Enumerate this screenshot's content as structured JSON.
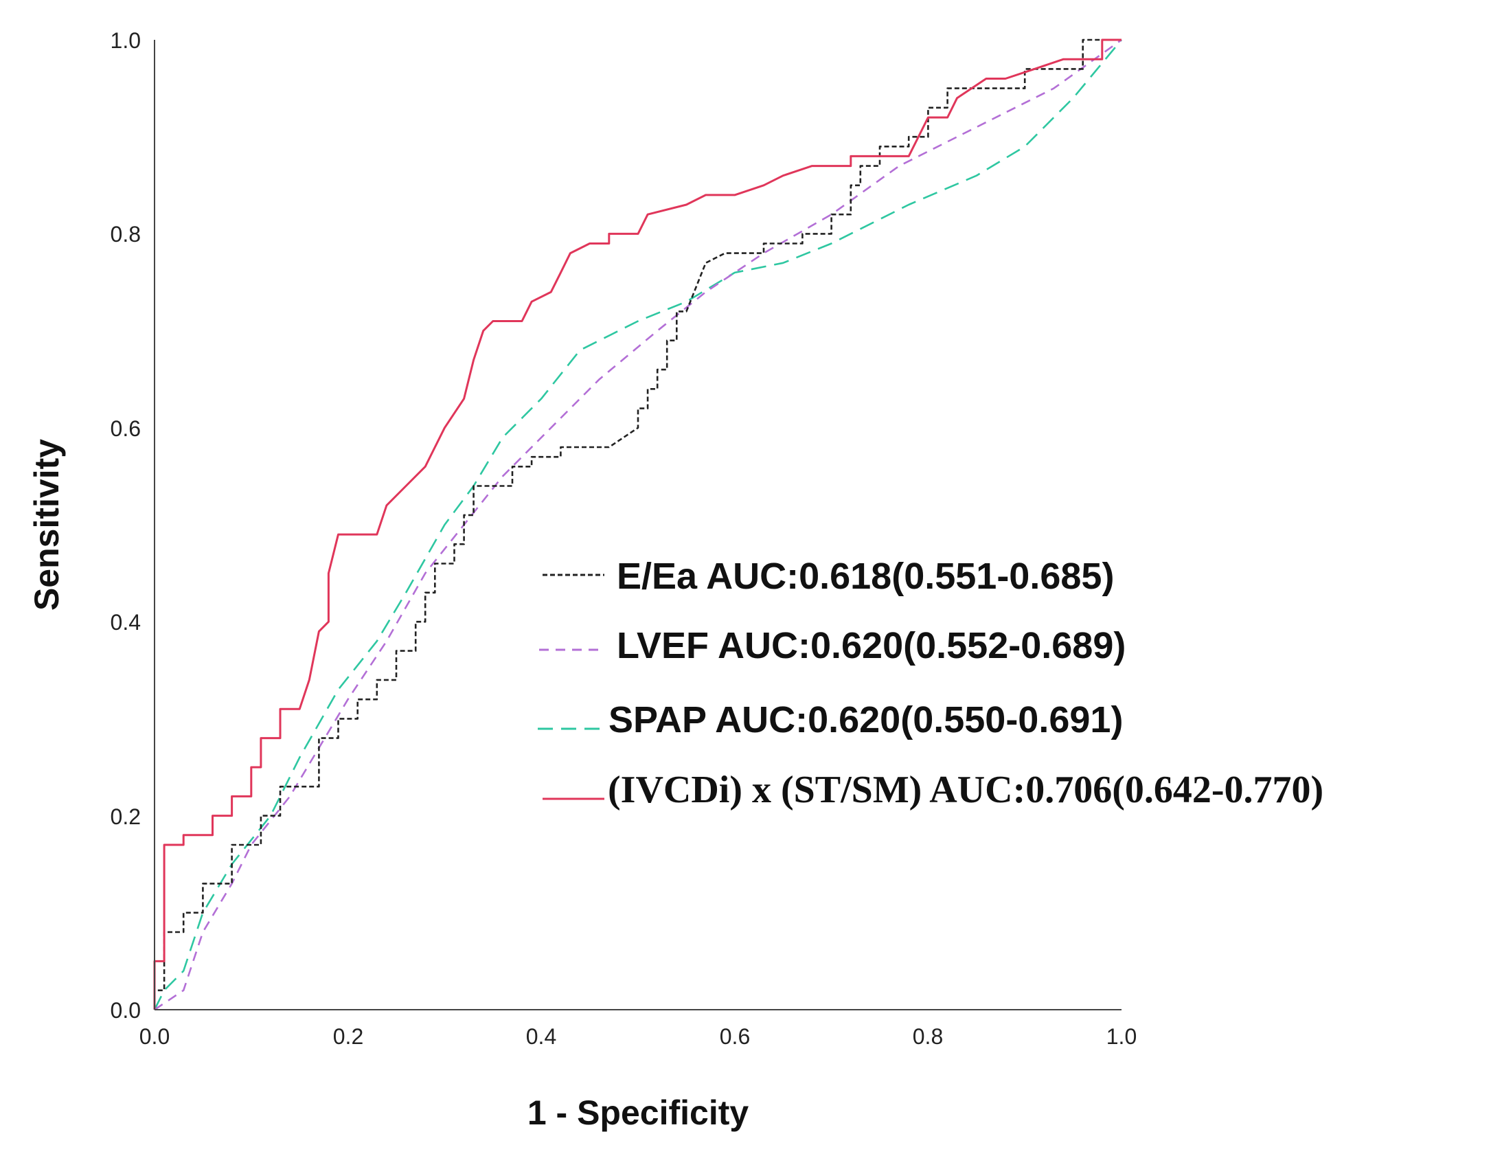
{
  "chart_data": {
    "type": "line",
    "title": "",
    "xlabel": "1 - Specificity",
    "ylabel": "Sensitivity",
    "xlim": [
      0,
      1
    ],
    "ylim": [
      0,
      1
    ],
    "xticks": [
      "0.0",
      "0.2",
      "0.4",
      "0.6",
      "0.8",
      "1.0"
    ],
    "yticks": [
      "0.0",
      "0.2",
      "0.4",
      "0.6",
      "0.8",
      "1.0"
    ],
    "legend_position": "center-right",
    "series": [
      {
        "name": "E/Ea",
        "legend_label": "E/Ea AUC:0.618(0.551-0.685)",
        "auc": "0.618",
        "ci": "0.551-0.685",
        "color": "#222222",
        "dash": "short",
        "points": [
          [
            0,
            0
          ],
          [
            0,
            0.02
          ],
          [
            0.01,
            0.02
          ],
          [
            0.01,
            0.08
          ],
          [
            0.03,
            0.08
          ],
          [
            0.03,
            0.1
          ],
          [
            0.05,
            0.1
          ],
          [
            0.05,
            0.13
          ],
          [
            0.08,
            0.13
          ],
          [
            0.08,
            0.17
          ],
          [
            0.11,
            0.17
          ],
          [
            0.11,
            0.2
          ],
          [
            0.13,
            0.2
          ],
          [
            0.13,
            0.23
          ],
          [
            0.17,
            0.23
          ],
          [
            0.17,
            0.28
          ],
          [
            0.19,
            0.28
          ],
          [
            0.19,
            0.3
          ],
          [
            0.21,
            0.3
          ],
          [
            0.21,
            0.32
          ],
          [
            0.23,
            0.32
          ],
          [
            0.23,
            0.34
          ],
          [
            0.25,
            0.34
          ],
          [
            0.25,
            0.37
          ],
          [
            0.27,
            0.37
          ],
          [
            0.27,
            0.4
          ],
          [
            0.28,
            0.4
          ],
          [
            0.28,
            0.43
          ],
          [
            0.29,
            0.43
          ],
          [
            0.29,
            0.46
          ],
          [
            0.31,
            0.46
          ],
          [
            0.31,
            0.48
          ],
          [
            0.32,
            0.48
          ],
          [
            0.32,
            0.51
          ],
          [
            0.33,
            0.51
          ],
          [
            0.33,
            0.54
          ],
          [
            0.37,
            0.54
          ],
          [
            0.37,
            0.56
          ],
          [
            0.39,
            0.56
          ],
          [
            0.39,
            0.57
          ],
          [
            0.42,
            0.57
          ],
          [
            0.42,
            0.58
          ],
          [
            0.47,
            0.58
          ],
          [
            0.5,
            0.6
          ],
          [
            0.5,
            0.62
          ],
          [
            0.51,
            0.62
          ],
          [
            0.51,
            0.64
          ],
          [
            0.52,
            0.64
          ],
          [
            0.52,
            0.66
          ],
          [
            0.53,
            0.66
          ],
          [
            0.53,
            0.69
          ],
          [
            0.54,
            0.69
          ],
          [
            0.54,
            0.72
          ],
          [
            0.55,
            0.72
          ],
          [
            0.57,
            0.77
          ],
          [
            0.59,
            0.78
          ],
          [
            0.63,
            0.78
          ],
          [
            0.63,
            0.79
          ],
          [
            0.67,
            0.79
          ],
          [
            0.67,
            0.8
          ],
          [
            0.7,
            0.8
          ],
          [
            0.7,
            0.82
          ],
          [
            0.72,
            0.82
          ],
          [
            0.72,
            0.85
          ],
          [
            0.73,
            0.85
          ],
          [
            0.73,
            0.87
          ],
          [
            0.75,
            0.87
          ],
          [
            0.75,
            0.89
          ],
          [
            0.78,
            0.89
          ],
          [
            0.78,
            0.9
          ],
          [
            0.8,
            0.9
          ],
          [
            0.8,
            0.93
          ],
          [
            0.82,
            0.93
          ],
          [
            0.82,
            0.95
          ],
          [
            0.9,
            0.95
          ],
          [
            0.9,
            0.97
          ],
          [
            0.96,
            0.97
          ],
          [
            0.96,
            1
          ],
          [
            1,
            1
          ]
        ]
      },
      {
        "name": "LVEF",
        "legend_label": "LVEF AUC:0.620(0.552-0.689)",
        "auc": "0.620",
        "ci": "0.552-0.689",
        "color": "#b36fd6",
        "dash": "medium",
        "points": [
          [
            0,
            0
          ],
          [
            0.03,
            0.02
          ],
          [
            0.05,
            0.08
          ],
          [
            0.08,
            0.13
          ],
          [
            0.1,
            0.17
          ],
          [
            0.14,
            0.22
          ],
          [
            0.17,
            0.27
          ],
          [
            0.2,
            0.32
          ],
          [
            0.24,
            0.38
          ],
          [
            0.28,
            0.45
          ],
          [
            0.32,
            0.5
          ],
          [
            0.36,
            0.55
          ],
          [
            0.41,
            0.6
          ],
          [
            0.46,
            0.65
          ],
          [
            0.52,
            0.7
          ],
          [
            0.57,
            0.74
          ],
          [
            0.63,
            0.78
          ],
          [
            0.7,
            0.82
          ],
          [
            0.77,
            0.87
          ],
          [
            0.85,
            0.91
          ],
          [
            0.93,
            0.95
          ],
          [
            1,
            1
          ]
        ]
      },
      {
        "name": "SPAP",
        "legend_label": "SPAP AUC:0.620(0.550-0.691)",
        "auc": "0.620",
        "ci": "0.550-0.691",
        "color": "#2ec7a1",
        "dash": "long",
        "points": [
          [
            0,
            0
          ],
          [
            0.01,
            0.02
          ],
          [
            0.03,
            0.04
          ],
          [
            0.05,
            0.1
          ],
          [
            0.08,
            0.15
          ],
          [
            0.12,
            0.2
          ],
          [
            0.15,
            0.26
          ],
          [
            0.19,
            0.33
          ],
          [
            0.23,
            0.38
          ],
          [
            0.26,
            0.43
          ],
          [
            0.3,
            0.5
          ],
          [
            0.33,
            0.54
          ],
          [
            0.36,
            0.59
          ],
          [
            0.4,
            0.63
          ],
          [
            0.44,
            0.68
          ],
          [
            0.5,
            0.71
          ],
          [
            0.55,
            0.73
          ],
          [
            0.6,
            0.76
          ],
          [
            0.65,
            0.77
          ],
          [
            0.7,
            0.79
          ],
          [
            0.78,
            0.83
          ],
          [
            0.85,
            0.86
          ],
          [
            0.9,
            0.89
          ],
          [
            0.95,
            0.94
          ],
          [
            1,
            1
          ]
        ]
      },
      {
        "name": "(IVCDi) x (ST/SM)",
        "legend_label": "(IVCDi) x (ST/SM) AUC:0.706(0.642-0.770)",
        "auc": "0.706",
        "ci": "0.642-0.770",
        "color": "#e0365a",
        "dash": "solid",
        "points": [
          [
            0,
            0
          ],
          [
            0,
            0.05
          ],
          [
            0.01,
            0.05
          ],
          [
            0.01,
            0.17
          ],
          [
            0.03,
            0.17
          ],
          [
            0.03,
            0.18
          ],
          [
            0.06,
            0.18
          ],
          [
            0.06,
            0.2
          ],
          [
            0.08,
            0.2
          ],
          [
            0.08,
            0.22
          ],
          [
            0.1,
            0.22
          ],
          [
            0.1,
            0.25
          ],
          [
            0.11,
            0.25
          ],
          [
            0.11,
            0.28
          ],
          [
            0.13,
            0.28
          ],
          [
            0.13,
            0.31
          ],
          [
            0.15,
            0.31
          ],
          [
            0.16,
            0.34
          ],
          [
            0.17,
            0.39
          ],
          [
            0.18,
            0.4
          ],
          [
            0.18,
            0.45
          ],
          [
            0.19,
            0.49
          ],
          [
            0.23,
            0.49
          ],
          [
            0.24,
            0.52
          ],
          [
            0.26,
            0.54
          ],
          [
            0.28,
            0.56
          ],
          [
            0.29,
            0.58
          ],
          [
            0.3,
            0.6
          ],
          [
            0.32,
            0.63
          ],
          [
            0.33,
            0.67
          ],
          [
            0.34,
            0.7
          ],
          [
            0.35,
            0.71
          ],
          [
            0.38,
            0.71
          ],
          [
            0.39,
            0.73
          ],
          [
            0.41,
            0.74
          ],
          [
            0.42,
            0.76
          ],
          [
            0.43,
            0.78
          ],
          [
            0.45,
            0.79
          ],
          [
            0.47,
            0.79
          ],
          [
            0.47,
            0.8
          ],
          [
            0.5,
            0.8
          ],
          [
            0.51,
            0.82
          ],
          [
            0.55,
            0.83
          ],
          [
            0.57,
            0.84
          ],
          [
            0.6,
            0.84
          ],
          [
            0.63,
            0.85
          ],
          [
            0.65,
            0.86
          ],
          [
            0.68,
            0.87
          ],
          [
            0.72,
            0.87
          ],
          [
            0.72,
            0.88
          ],
          [
            0.78,
            0.88
          ],
          [
            0.8,
            0.92
          ],
          [
            0.82,
            0.92
          ],
          [
            0.83,
            0.94
          ],
          [
            0.86,
            0.96
          ],
          [
            0.88,
            0.96
          ],
          [
            0.91,
            0.97
          ],
          [
            0.94,
            0.98
          ],
          [
            0.98,
            0.98
          ],
          [
            0.98,
            1
          ],
          [
            1,
            1
          ]
        ]
      }
    ]
  }
}
